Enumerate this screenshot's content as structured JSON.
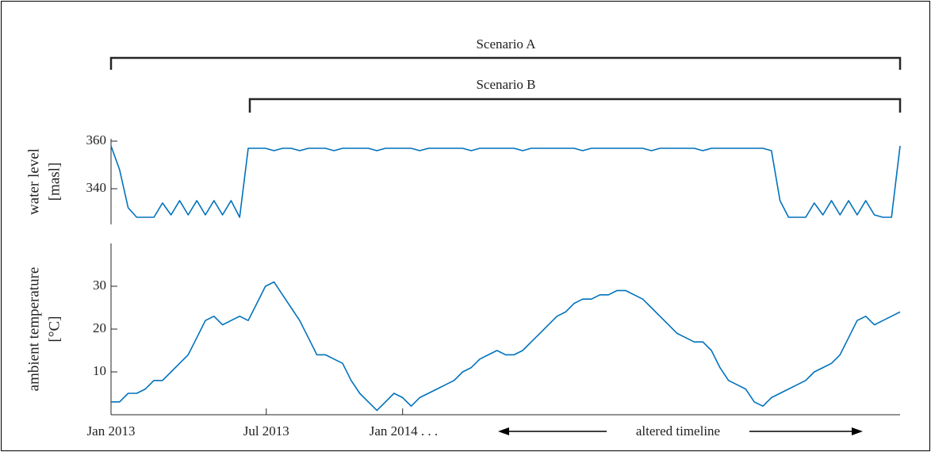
{
  "chart_data": [
    {
      "type": "line",
      "ylabel": [
        "water level",
        "[masl]"
      ],
      "annotations": [
        "Scenario A",
        "Scenario B"
      ],
      "color": "#0072bd",
      "xlim": [
        0,
        920
      ],
      "ylim": [
        325,
        361
      ],
      "yticks": [
        340,
        360
      ],
      "x": [
        0,
        10,
        20,
        30,
        40,
        50,
        60,
        70,
        80,
        90,
        100,
        110,
        120,
        130,
        140,
        150,
        160,
        170,
        180,
        190,
        200,
        210,
        220,
        230,
        240,
        250,
        260,
        270,
        280,
        290,
        300,
        310,
        320,
        330,
        340,
        350,
        360,
        370,
        380,
        390,
        400,
        410,
        420,
        430,
        440,
        450,
        460,
        470,
        480,
        490,
        500,
        510,
        520,
        530,
        540,
        550,
        560,
        570,
        580,
        590,
        600,
        610,
        620,
        630,
        640,
        650,
        660,
        670,
        680,
        690,
        700,
        710,
        720,
        730,
        740,
        750,
        760,
        770,
        780,
        790,
        800,
        810,
        820,
        830,
        840,
        850,
        860,
        870,
        880,
        890,
        900,
        910,
        920
      ],
      "values": [
        358,
        348,
        332,
        328,
        328,
        328,
        334,
        329,
        335,
        329,
        335,
        329,
        335,
        329,
        335,
        328,
        357,
        357,
        357,
        356,
        357,
        357,
        356,
        357,
        357,
        357,
        356,
        357,
        357,
        357,
        357,
        356,
        357,
        357,
        357,
        357,
        356,
        357,
        357,
        357,
        357,
        357,
        356,
        357,
        357,
        357,
        357,
        357,
        356,
        357,
        357,
        357,
        357,
        357,
        357,
        356,
        357,
        357,
        357,
        357,
        357,
        357,
        357,
        356,
        357,
        357,
        357,
        357,
        357,
        356,
        357,
        357,
        357,
        357,
        357,
        357,
        357,
        356,
        335,
        328,
        328,
        328,
        334,
        329,
        335,
        329,
        335,
        329,
        335,
        329,
        328,
        328,
        358
      ]
    },
    {
      "type": "line",
      "ylabel": [
        "ambient temperature",
        "[°C]"
      ],
      "annotations": [
        "altered timeline"
      ],
      "color": "#0072bd",
      "xlim": [
        0,
        920
      ],
      "ylim": [
        0,
        40
      ],
      "yticks": [
        10,
        20,
        30
      ],
      "xticks": [
        {
          "value": 0,
          "label": "Jan 2013"
        },
        {
          "value": 181,
          "label": "Jul 2013"
        },
        {
          "value": 340,
          "label": "Jan 2014 . . ."
        }
      ],
      "x": [
        0,
        10,
        20,
        30,
        40,
        50,
        60,
        70,
        80,
        90,
        100,
        110,
        120,
        130,
        140,
        150,
        160,
        170,
        180,
        190,
        200,
        210,
        220,
        230,
        240,
        250,
        260,
        270,
        280,
        290,
        300,
        310,
        320,
        330,
        340,
        350,
        360,
        370,
        380,
        390,
        400,
        410,
        420,
        430,
        440,
        450,
        460,
        470,
        480,
        490,
        500,
        510,
        520,
        530,
        540,
        550,
        560,
        570,
        580,
        590,
        600,
        610,
        620,
        630,
        640,
        650,
        660,
        670,
        680,
        690,
        700,
        710,
        720,
        730,
        740,
        750,
        760,
        770,
        780,
        790,
        800,
        810,
        820,
        830,
        840,
        850,
        860,
        870,
        880,
        890,
        900,
        910,
        920
      ],
      "values": [
        3,
        3,
        5,
        5,
        6,
        8,
        8,
        10,
        12,
        14,
        18,
        22,
        23,
        21,
        22,
        23,
        22,
        26,
        30,
        31,
        28,
        25,
        22,
        18,
        14,
        14,
        13,
        12,
        8,
        5,
        3,
        1,
        3,
        5,
        4,
        2,
        4,
        5,
        6,
        7,
        8,
        10,
        11,
        13,
        14,
        15,
        14,
        14,
        15,
        17,
        19,
        21,
        23,
        24,
        26,
        27,
        27,
        28,
        28,
        29,
        29,
        28,
        27,
        25,
        23,
        21,
        19,
        18,
        17,
        17,
        15,
        11,
        8,
        7,
        6,
        3,
        2,
        4,
        5,
        6,
        7,
        8,
        10,
        11,
        12,
        14,
        18,
        22,
        23,
        21,
        22,
        23,
        24
      ]
    }
  ]
}
